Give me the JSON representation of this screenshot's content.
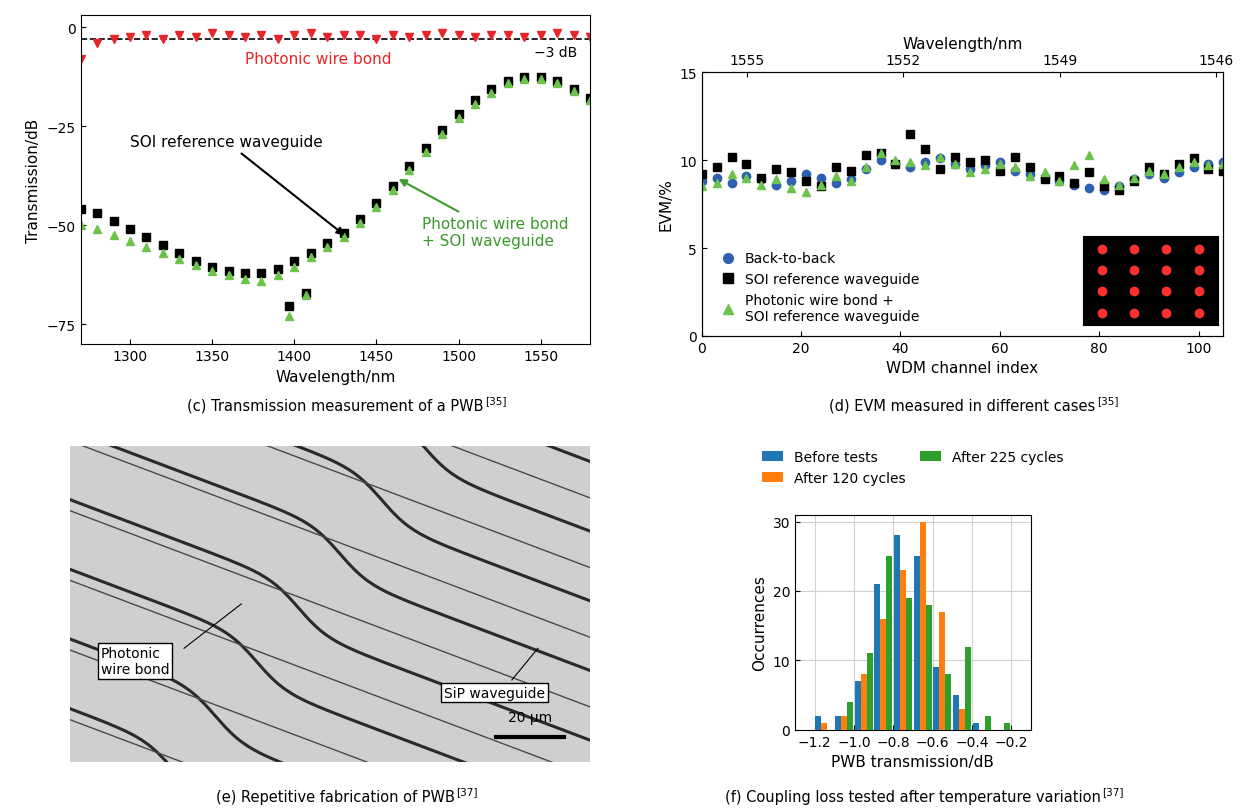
{
  "chart_data": [
    {
      "type": "scatter",
      "caption": "(c) Transmission measurement of a PWB",
      "ref": "[35]",
      "x_label": "Wavelength/nm",
      "y_label": "Transmission/dB",
      "xlim": [
        1270,
        1580
      ],
      "xticks": [
        1300,
        1350,
        1400,
        1450,
        1500,
        1550
      ],
      "ylim": [
        -80,
        3
      ],
      "yticks": [
        {
          "value": -75,
          "label": "−75"
        },
        {
          "value": -50,
          "label": "−50"
        },
        {
          "value": -25,
          "label": "−25"
        },
        0
      ],
      "reference_line": {
        "value": -3,
        "label": "−3 dB"
      },
      "series": [
        {
          "name": "Photonic wire bond",
          "color": "#e8262a",
          "marker": "triangle_down",
          "x": [
            1270,
            1280,
            1290,
            1300,
            1310,
            1320,
            1330,
            1340,
            1350,
            1360,
            1370,
            1380,
            1390,
            1400,
            1410,
            1420,
            1430,
            1440,
            1450,
            1460,
            1470,
            1480,
            1490,
            1500,
            1510,
            1520,
            1530,
            1540,
            1550,
            1560,
            1570,
            1580
          ],
          "values": [
            -8,
            -4,
            -3,
            -2.5,
            -2,
            -3,
            -2,
            -2.5,
            -1.5,
            -2,
            -2.5,
            -2,
            -3,
            -2,
            -1.5,
            -2.5,
            -2,
            -2,
            -3,
            -2,
            -2.5,
            -2,
            -1.5,
            -2,
            -2.5,
            -2,
            -2,
            -2.5,
            -2,
            -1.5,
            -2,
            -2.5
          ]
        },
        {
          "name": "SOI reference waveguide",
          "color": "#000000",
          "marker": "square",
          "x": [
            1270,
            1280,
            1290,
            1300,
            1310,
            1320,
            1330,
            1340,
            1350,
            1360,
            1370,
            1380,
            1390,
            1400,
            1410,
            1420,
            1430,
            1440,
            1450,
            1460,
            1470,
            1480,
            1490,
            1500,
            1510,
            1520,
            1530,
            1540,
            1550,
            1560,
            1570,
            1580,
            1397,
            1407
          ],
          "values": [
            -46,
            -47,
            -49,
            -51,
            -53,
            -55,
            -57,
            -59,
            -60.5,
            -61.5,
            -62,
            -62,
            -61,
            -59,
            -57,
            -54.5,
            -52,
            -48.5,
            -44.5,
            -40,
            -35,
            -30.5,
            -26,
            -22,
            -18.5,
            -15.5,
            -13.5,
            -12.5,
            -12.5,
            -13.5,
            -15.5,
            -18,
            -70.5,
            -67
          ]
        },
        {
          "name": "Photonic wire bond\n+ SOI waveguide",
          "color": "#6cc24a",
          "marker": "triangle_up",
          "x": [
            1270,
            1280,
            1290,
            1300,
            1310,
            1320,
            1330,
            1340,
            1350,
            1360,
            1370,
            1380,
            1390,
            1400,
            1410,
            1420,
            1430,
            1440,
            1450,
            1460,
            1470,
            1480,
            1490,
            1500,
            1510,
            1520,
            1530,
            1540,
            1550,
            1560,
            1570,
            1580,
            1397,
            1407
          ],
          "values": [
            -50,
            -51,
            -52.5,
            -54,
            -55.5,
            -57,
            -58.5,
            -60,
            -61.5,
            -62.5,
            -63.5,
            -64,
            -62.5,
            -60.5,
            -58,
            -55.5,
            -53,
            -49.5,
            -45.5,
            -41,
            -36,
            -31.5,
            -27,
            -23,
            -19.5,
            -16.5,
            -14,
            -13,
            -13,
            -14,
            -16,
            -18.5,
            -73,
            -67.5
          ]
        }
      ]
    },
    {
      "type": "scatter",
      "caption": "(d) EVM measured in different cases",
      "ref": "[35]",
      "x_label": "WDM channel index",
      "y_label": "EVM/%",
      "x2_label": "Wavelength/nm",
      "xlim": [
        0,
        105
      ],
      "xticks": [
        0,
        20,
        40,
        60,
        80,
        100
      ],
      "x2lim": [
        1555.86,
        1545.86
      ],
      "x2ticks": [
        1555,
        1552,
        1549,
        1546
      ],
      "ylim": [
        0,
        15
      ],
      "yticks": [
        0,
        5,
        10,
        15
      ],
      "legend": "lower left",
      "constellation": {
        "i": [
          -3,
          -1,
          1,
          3
        ],
        "q": [
          -3,
          -1,
          1,
          3
        ]
      },
      "x": [
        0,
        3,
        6,
        9,
        12,
        15,
        18,
        21,
        24,
        27,
        30,
        33,
        36,
        39,
        42,
        45,
        48,
        51,
        54,
        57,
        60,
        63,
        66,
        69,
        72,
        75,
        78,
        81,
        84,
        87,
        90,
        93,
        96,
        99,
        102,
        105
      ],
      "series": [
        {
          "name": "Back-to-back",
          "color": "#2f5fb0",
          "marker": "circle",
          "values": [
            8.8,
            9.0,
            8.7,
            9.1,
            8.9,
            8.6,
            8.8,
            9.2,
            9.0,
            8.7,
            8.9,
            9.5,
            10.0,
            9.8,
            9.6,
            9.9,
            10.1,
            9.8,
            9.5,
            9.7,
            9.9,
            9.4,
            9.2,
            9.0,
            8.8,
            8.6,
            8.4,
            8.3,
            8.5,
            8.9,
            9.2,
            9.0,
            9.3,
            9.6,
            9.8,
            9.9
          ]
        },
        {
          "name": "SOI reference waveguide",
          "color": "#000000",
          "marker": "square",
          "values": [
            9.2,
            9.6,
            10.2,
            9.8,
            9.0,
            9.5,
            9.3,
            8.8,
            8.5,
            9.6,
            9.4,
            10.3,
            10.4,
            9.8,
            11.5,
            10.6,
            9.5,
            10.2,
            9.9,
            10.0,
            9.4,
            10.2,
            9.6,
            8.9,
            9.1,
            8.7,
            9.3,
            8.5,
            8.3,
            8.8,
            9.6,
            9.2,
            9.8,
            10.1,
            9.5,
            9.4
          ]
        },
        {
          "name": "Photonic wire bond +\nSOI reference waveguide",
          "color": "#6cc24a",
          "marker": "triangle_up",
          "values": [
            8.5,
            8.7,
            9.2,
            9.0,
            8.6,
            8.9,
            8.4,
            8.2,
            8.6,
            9.1,
            8.8,
            9.6,
            10.4,
            10.0,
            9.9,
            9.7,
            10.2,
            9.8,
            9.3,
            9.5,
            9.8,
            9.6,
            9.1,
            9.3,
            8.8,
            9.7,
            10.3,
            8.9,
            8.6,
            9.0,
            9.4,
            9.2,
            9.6,
            9.9,
            9.7,
            9.8
          ]
        }
      ]
    },
    {
      "type": "bar",
      "caption": "(f) Coupling loss tested after temperature variation",
      "ref": "[37]",
      "x_label": "PWB transmission/dB",
      "y_label": "Occurrences",
      "xlim": [
        -1.3,
        -0.1
      ],
      "xticks": [
        {
          "value": -1.2,
          "label": "−1.2"
        },
        {
          "value": -1.0,
          "label": "−1.0"
        },
        {
          "value": -0.8,
          "label": "−0.8"
        },
        {
          "value": -0.6,
          "label": "−0.6"
        },
        {
          "value": -0.4,
          "label": "−0.4"
        },
        {
          "value": -0.2,
          "label": "−0.2"
        }
      ],
      "ylim": [
        0,
        31
      ],
      "yticks": [
        0,
        10,
        20,
        30
      ],
      "grid": true,
      "legend": "upper center",
      "x": [
        -1.15,
        -1.05,
        -0.95,
        -0.85,
        -0.75,
        -0.65,
        -0.55,
        -0.45,
        -0.35,
        -0.25
      ],
      "series": [
        {
          "name": "Before tests",
          "color": "#1f77b4",
          "values": [
            2,
            2,
            7,
            21,
            28,
            25,
            9,
            5,
            1,
            0
          ]
        },
        {
          "name": "After 120 cycles",
          "color": "#ff7f0e",
          "values": [
            1,
            2,
            8,
            16,
            23,
            30,
            17,
            3,
            0,
            0
          ]
        },
        {
          "name": "After 225 cycles",
          "color": "#2ca02c",
          "values": [
            0,
            4,
            11,
            25,
            19,
            18,
            8,
            12,
            2,
            1
          ]
        }
      ]
    }
  ],
  "image": {
    "caption": "(e) Repetitive fabrication of PWB",
    "ref": "[37]",
    "labels": [
      "Photonic\nwire bond",
      "SiP waveguide"
    ],
    "scale_bar": "20 μm"
  }
}
